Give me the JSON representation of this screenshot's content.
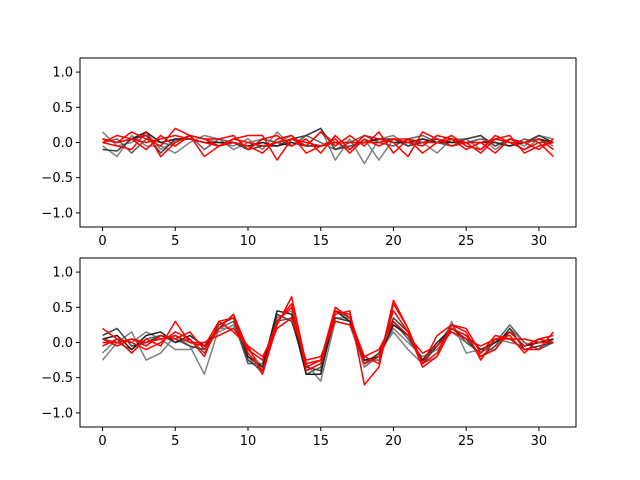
{
  "chart_data": [
    {
      "type": "line",
      "title": "",
      "xlabel": "",
      "ylabel": "",
      "xlim": [
        -1.55,
        32.55
      ],
      "ylim": [
        -1.2,
        1.2
      ],
      "xticks": [
        0,
        5,
        10,
        15,
        20,
        25,
        30
      ],
      "xtick_labels": [
        "0",
        "5",
        "10",
        "15",
        "20",
        "25",
        "30"
      ],
      "yticks": [
        -1.0,
        -0.5,
        0.0,
        0.5,
        1.0
      ],
      "ytick_labels": [
        "−1.0",
        "−0.5",
        "0.0",
        "0.5",
        "1.0"
      ],
      "grid": false,
      "x": [
        0,
        1,
        2,
        3,
        4,
        5,
        6,
        7,
        8,
        9,
        10,
        11,
        12,
        13,
        14,
        15,
        16,
        17,
        18,
        19,
        20,
        21,
        22,
        23,
        24,
        25,
        26,
        27,
        28,
        29,
        30,
        31
      ],
      "series": [
        {
          "color": "#808080",
          "values": [
            0.15,
            -0.05,
            0.0,
            0.15,
            -0.1,
            0.02,
            0.1,
            0.05,
            0.0,
            -0.05,
            0.05,
            -0.1,
            0.15,
            -0.05,
            0.1,
            0.2,
            -0.25,
            0.05,
            -0.3,
            0.05,
            0.1,
            -0.05,
            0.05,
            0.0,
            -0.05,
            0.05,
            0.1,
            -0.1,
            0.05,
            -0.05,
            0.1,
            0.05
          ]
        },
        {
          "color": "#808080",
          "values": [
            -0.05,
            -0.2,
            0.1,
            -0.05,
            -0.05,
            -0.15,
            0.0,
            0.1,
            0.05,
            -0.1,
            0.0,
            0.05,
            0.0,
            0.1,
            -0.05,
            0.15,
            0.0,
            -0.1,
            0.05,
            -0.25,
            0.05,
            0.0,
            0.0,
            -0.15,
            0.05,
            0.05,
            -0.1,
            0.05,
            0.0,
            -0.1,
            0.05,
            -0.05
          ]
        },
        {
          "color": "#606060",
          "values": [
            0.0,
            0.05,
            -0.15,
            0.05,
            0.0,
            -0.05,
            0.1,
            -0.1,
            0.05,
            0.0,
            -0.1,
            0.05,
            0.0,
            -0.05,
            0.1,
            0.0,
            -0.1,
            0.0,
            0.1,
            0.0,
            -0.05,
            0.05,
            0.1,
            0.0,
            -0.05,
            0.0,
            0.05,
            0.0,
            -0.05,
            0.05,
            0.0,
            0.0
          ]
        },
        {
          "color": "#404040",
          "values": [
            -0.1,
            -0.12,
            0.05,
            0.1,
            -0.15,
            0.05,
            0.05,
            0.0,
            -0.05,
            0.0,
            -0.1,
            -0.05,
            -0.05,
            0.05,
            0.1,
            0.2,
            -0.1,
            -0.05,
            0.0,
            0.05,
            0.05,
            -0.05,
            0.0,
            0.05,
            0.0,
            0.05,
            0.1,
            -0.05,
            0.05,
            0.0,
            0.1,
            0.0
          ]
        },
        {
          "color": "#202020",
          "values": [
            0.05,
            0.0,
            0.05,
            0.15,
            0.0,
            0.05,
            0.05,
            0.0,
            0.0,
            0.0,
            -0.05,
            0.0,
            -0.05,
            0.0,
            -0.05,
            -0.05,
            0.0,
            0.0,
            0.0,
            0.05,
            0.0,
            0.0,
            0.05,
            0.0,
            0.0,
            0.0,
            0.0,
            0.0,
            -0.05,
            0.0,
            0.05,
            0.0
          ]
        },
        {
          "color": "#ff0000",
          "values": [
            0.05,
            0.0,
            0.15,
            0.05,
            -0.05,
            0.2,
            0.1,
            -0.2,
            -0.05,
            0.05,
            0.1,
            0.1,
            -0.25,
            0.05,
            -0.05,
            0.15,
            -0.05,
            0.1,
            -0.05,
            0.15,
            -0.15,
            0.05,
            -0.15,
            0.0,
            0.1,
            -0.05,
            -0.1,
            0.1,
            0.0,
            -0.1,
            0.0,
            -0.2
          ]
        },
        {
          "color": "#ff0000",
          "values": [
            0.0,
            0.1,
            0.05,
            -0.1,
            0.1,
            -0.05,
            0.1,
            0.05,
            0.05,
            0.1,
            -0.1,
            0.05,
            0.1,
            -0.05,
            0.05,
            -0.15,
            0.1,
            -0.1,
            0.1,
            0.05,
            0.0,
            -0.2,
            0.15,
            0.05,
            -0.05,
            0.0,
            -0.15,
            0.05,
            0.1,
            -0.15,
            -0.05,
            0.0
          ]
        },
        {
          "color": "#ff0000",
          "values": [
            0.0,
            -0.05,
            -0.1,
            0.15,
            -0.2,
            0.0,
            0.1,
            0.05,
            -0.05,
            0.0,
            -0.05,
            -0.15,
            0.05,
            0.1,
            -0.15,
            -0.05,
            0.05,
            -0.15,
            0.05,
            -0.05,
            0.05,
            0.0,
            -0.05,
            0.1,
            0.05,
            -0.1,
            0.0,
            -0.15,
            0.05,
            0.0,
            -0.1,
            0.05
          ]
        },
        {
          "color": "#ff0000",
          "values": [
            0.05,
            0.0,
            0.05,
            0.0,
            0.05,
            0.1,
            0.05,
            0.0,
            -0.05,
            0.05,
            0.0,
            -0.05,
            0.0,
            0.05,
            0.0,
            -0.05,
            0.0,
            0.0,
            0.0,
            0.0,
            0.05,
            0.05,
            0.0,
            0.0,
            0.05,
            0.0,
            0.0,
            0.05,
            0.0,
            0.0,
            0.05,
            -0.1
          ]
        }
      ]
    },
    {
      "type": "line",
      "title": "",
      "xlabel": "",
      "ylabel": "",
      "xlim": [
        -1.55,
        32.55
      ],
      "ylim": [
        -1.2,
        1.2
      ],
      "xticks": [
        0,
        5,
        10,
        15,
        20,
        25,
        30
      ],
      "xtick_labels": [
        "0",
        "5",
        "10",
        "15",
        "20",
        "25",
        "30"
      ],
      "yticks": [
        -1.0,
        -0.5,
        0.0,
        0.5,
        1.0
      ],
      "ytick_labels": [
        "−1.0",
        "−0.5",
        "0.0",
        "0.5",
        "1.0"
      ],
      "grid": false,
      "x": [
        0,
        1,
        2,
        3,
        4,
        5,
        6,
        7,
        8,
        9,
        10,
        11,
        12,
        13,
        14,
        15,
        16,
        17,
        18,
        19,
        20,
        21,
        22,
        23,
        24,
        25,
        26,
        27,
        28,
        29,
        30,
        31
      ],
      "series": [
        {
          "color": "#808080",
          "values": [
            -0.25,
            0.0,
            0.15,
            -0.25,
            -0.15,
            0.1,
            -0.05,
            -0.45,
            0.2,
            0.2,
            -0.1,
            -0.35,
            0.2,
            0.35,
            -0.3,
            -0.55,
            0.3,
            0.25,
            -0.35,
            -0.15,
            0.15,
            -0.1,
            -0.3,
            -0.2,
            0.3,
            -0.15,
            -0.1,
            -0.1,
            0.2,
            0.0,
            -0.1,
            0.05
          ]
        },
        {
          "color": "#808080",
          "values": [
            -0.15,
            0.05,
            0.0,
            0.15,
            0.05,
            -0.1,
            -0.1,
            0.0,
            0.15,
            0.25,
            -0.2,
            -0.45,
            0.35,
            0.45,
            -0.4,
            -0.3,
            0.35,
            0.35,
            -0.35,
            -0.2,
            0.2,
            0.0,
            -0.2,
            -0.1,
            0.15,
            0.0,
            -0.15,
            0.05,
            0.0,
            -0.05,
            0.0,
            0.0
          ]
        },
        {
          "color": "#606060",
          "values": [
            0.05,
            0.0,
            -0.1,
            0.05,
            0.1,
            0.0,
            0.05,
            -0.15,
            0.2,
            0.3,
            -0.3,
            -0.3,
            0.3,
            0.35,
            -0.45,
            -0.35,
            0.45,
            0.35,
            -0.25,
            -0.25,
            0.3,
            0.05,
            -0.25,
            -0.05,
            0.25,
            0.0,
            -0.15,
            0.0,
            0.25,
            0.0,
            -0.1,
            0.0
          ]
        },
        {
          "color": "#404040",
          "values": [
            0.1,
            0.2,
            -0.05,
            0.0,
            0.1,
            0.05,
            -0.05,
            -0.1,
            0.25,
            0.35,
            -0.25,
            -0.4,
            0.4,
            0.3,
            -0.35,
            -0.4,
            0.35,
            0.3,
            -0.3,
            -0.15,
            0.35,
            0.15,
            -0.3,
            -0.05,
            0.2,
            0.05,
            -0.2,
            -0.05,
            0.2,
            -0.1,
            -0.05,
            0.0
          ]
        },
        {
          "color": "#202020",
          "values": [
            0.05,
            0.1,
            -0.1,
            0.1,
            0.15,
            0.0,
            0.1,
            -0.05,
            0.2,
            0.4,
            -0.2,
            -0.35,
            0.45,
            0.4,
            -0.45,
            -0.45,
            0.45,
            0.3,
            -0.25,
            -0.2,
            0.25,
            0.1,
            -0.25,
            0.0,
            0.2,
            0.1,
            -0.1,
            0.0,
            0.15,
            -0.05,
            0.0,
            0.05
          ]
        },
        {
          "color": "#ff0000",
          "values": [
            0.2,
            0.05,
            -0.15,
            0.05,
            -0.05,
            0.3,
            0.0,
            -0.05,
            0.3,
            0.15,
            -0.05,
            -0.45,
            0.25,
            0.65,
            -0.3,
            -0.25,
            0.4,
            0.45,
            -0.6,
            -0.35,
            0.55,
            0.2,
            -0.3,
            0.1,
            0.25,
            0.15,
            -0.25,
            0.05,
            0.1,
            -0.15,
            0.05,
            0.1
          ]
        },
        {
          "color": "#ff0000",
          "values": [
            0.05,
            -0.05,
            0.05,
            -0.05,
            0.1,
            0.05,
            0.15,
            -0.1,
            0.2,
            0.4,
            -0.1,
            -0.25,
            0.3,
            0.5,
            -0.35,
            -0.25,
            0.5,
            0.35,
            -0.2,
            -0.3,
            0.6,
            0.2,
            -0.3,
            -0.15,
            0.25,
            0.2,
            -0.15,
            0.1,
            0.05,
            -0.1,
            -0.1,
            0.15
          ]
        },
        {
          "color": "#ff0000",
          "values": [
            -0.05,
            0.05,
            0.0,
            -0.1,
            0.0,
            0.15,
            0.05,
            -0.2,
            0.3,
            0.35,
            -0.15,
            -0.4,
            0.3,
            0.55,
            -0.4,
            -0.3,
            0.45,
            0.4,
            -0.3,
            -0.2,
            0.45,
            0.15,
            -0.35,
            -0.2,
            0.2,
            0.1,
            -0.2,
            -0.1,
            0.15,
            -0.05,
            0.05,
            0.0
          ]
        },
        {
          "color": "#ff0000",
          "values": [
            0.0,
            0.0,
            0.05,
            0.0,
            0.05,
            0.1,
            0.0,
            0.0,
            0.1,
            0.2,
            -0.05,
            -0.2,
            0.2,
            0.35,
            -0.25,
            -0.2,
            0.3,
            0.25,
            -0.2,
            -0.1,
            0.3,
            0.1,
            -0.15,
            -0.05,
            0.15,
            0.05,
            -0.05,
            0.05,
            0.05,
            0.05,
            0.0,
            0.0
          ]
        }
      ]
    }
  ]
}
